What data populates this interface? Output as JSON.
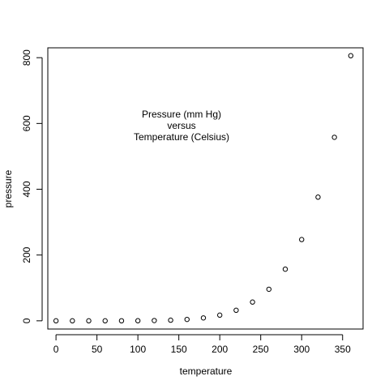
{
  "chart_data": {
    "type": "scatter",
    "title": "",
    "xlabel": "temperature",
    "ylabel": "pressure",
    "xlim": [
      -10,
      375
    ],
    "ylim": [
      -25,
      830
    ],
    "x_ticks": [
      0,
      50,
      100,
      150,
      200,
      250,
      300,
      350
    ],
    "y_ticks": [
      0,
      200,
      400,
      600,
      800
    ],
    "grid": false,
    "point_style": "open-circle",
    "point_color": "#000000",
    "annotation": [
      "Pressure (mm Hg)",
      "versus",
      "Temperature (Celsius)"
    ],
    "points": [
      {
        "x": 0,
        "y": 0.0002
      },
      {
        "x": 20,
        "y": 0.0012
      },
      {
        "x": 40,
        "y": 0.006
      },
      {
        "x": 60,
        "y": 0.03
      },
      {
        "x": 80,
        "y": 0.09
      },
      {
        "x": 100,
        "y": 0.27
      },
      {
        "x": 120,
        "y": 0.75
      },
      {
        "x": 140,
        "y": 1.85
      },
      {
        "x": 160,
        "y": 4.2
      },
      {
        "x": 180,
        "y": 8.8
      },
      {
        "x": 200,
        "y": 17.3
      },
      {
        "x": 220,
        "y": 32.1
      },
      {
        "x": 240,
        "y": 57
      },
      {
        "x": 260,
        "y": 96
      },
      {
        "x": 280,
        "y": 157
      },
      {
        "x": 300,
        "y": 247
      },
      {
        "x": 320,
        "y": 376
      },
      {
        "x": 340,
        "y": 558
      },
      {
        "x": 360,
        "y": 806
      }
    ]
  }
}
